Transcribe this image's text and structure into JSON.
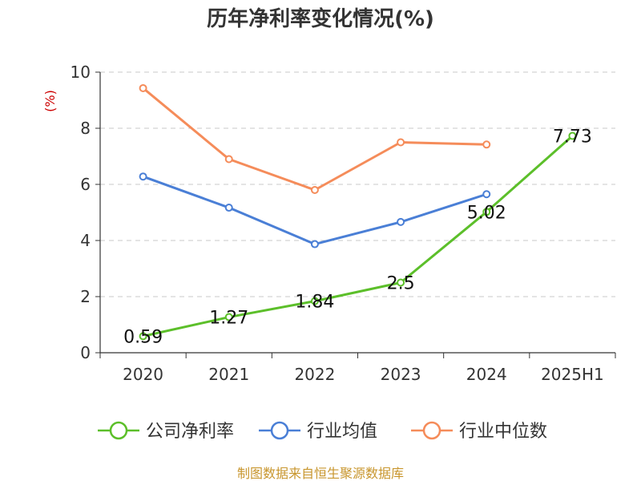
{
  "chart_data": {
    "type": "line",
    "title": "历年净利率变化情况(%)",
    "ylabel": "(%)",
    "xlabel": "",
    "categories": [
      "2020",
      "2021",
      "2022",
      "2023",
      "2024",
      "2025H1"
    ],
    "ylim": [
      0,
      10
    ],
    "yticks": [
      0,
      2,
      4,
      6,
      8,
      10
    ],
    "grid": true,
    "legend_position": "bottom",
    "series": [
      {
        "name": "公司净利率",
        "color": "#5cbf2a",
        "values": [
          0.59,
          1.27,
          1.84,
          2.5,
          5.02,
          7.73
        ],
        "labels": [
          "0.59",
          "1.27",
          "1.84",
          "2.5",
          "5.02",
          "7.73"
        ]
      },
      {
        "name": "行业均值",
        "color": "#4a7fd6",
        "values": [
          6.28,
          5.17,
          3.87,
          4.66,
          5.65,
          null
        ]
      },
      {
        "name": "行业中位数",
        "color": "#f58c5a",
        "values": [
          9.43,
          6.9,
          5.8,
          7.5,
          7.42,
          null
        ]
      }
    ],
    "source": "制图数据来自恒生聚源数据库"
  }
}
